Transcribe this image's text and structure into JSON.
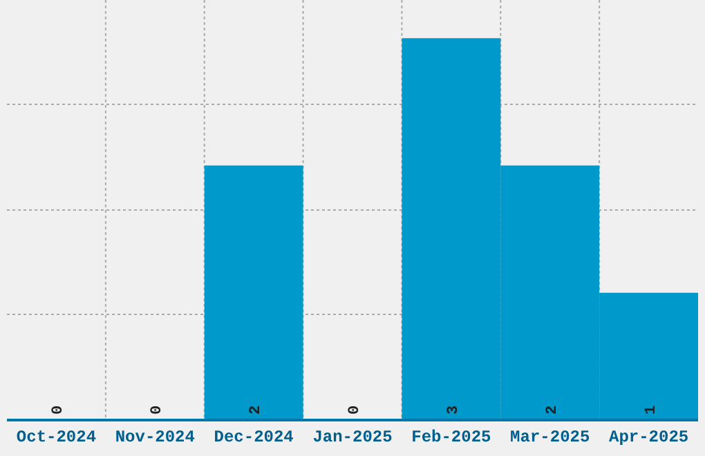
{
  "chart_data": {
    "type": "bar",
    "categories": [
      "Oct-2024",
      "Nov-2024",
      "Dec-2024",
      "Jan-2025",
      "Feb-2025",
      "Mar-2025",
      "Apr-2025"
    ],
    "values": [
      0,
      0,
      2,
      0,
      3,
      2,
      1
    ],
    "color": "#0099cc",
    "data_labels": true,
    "grid": true,
    "ylim": [
      0,
      3.3
    ],
    "yticks": [
      {
        "value": 0.83,
        "label": null
      },
      {
        "value": 1.65,
        "label": null
      },
      {
        "value": 2.48,
        "label": null
      }
    ],
    "tick_labels": "x"
  }
}
